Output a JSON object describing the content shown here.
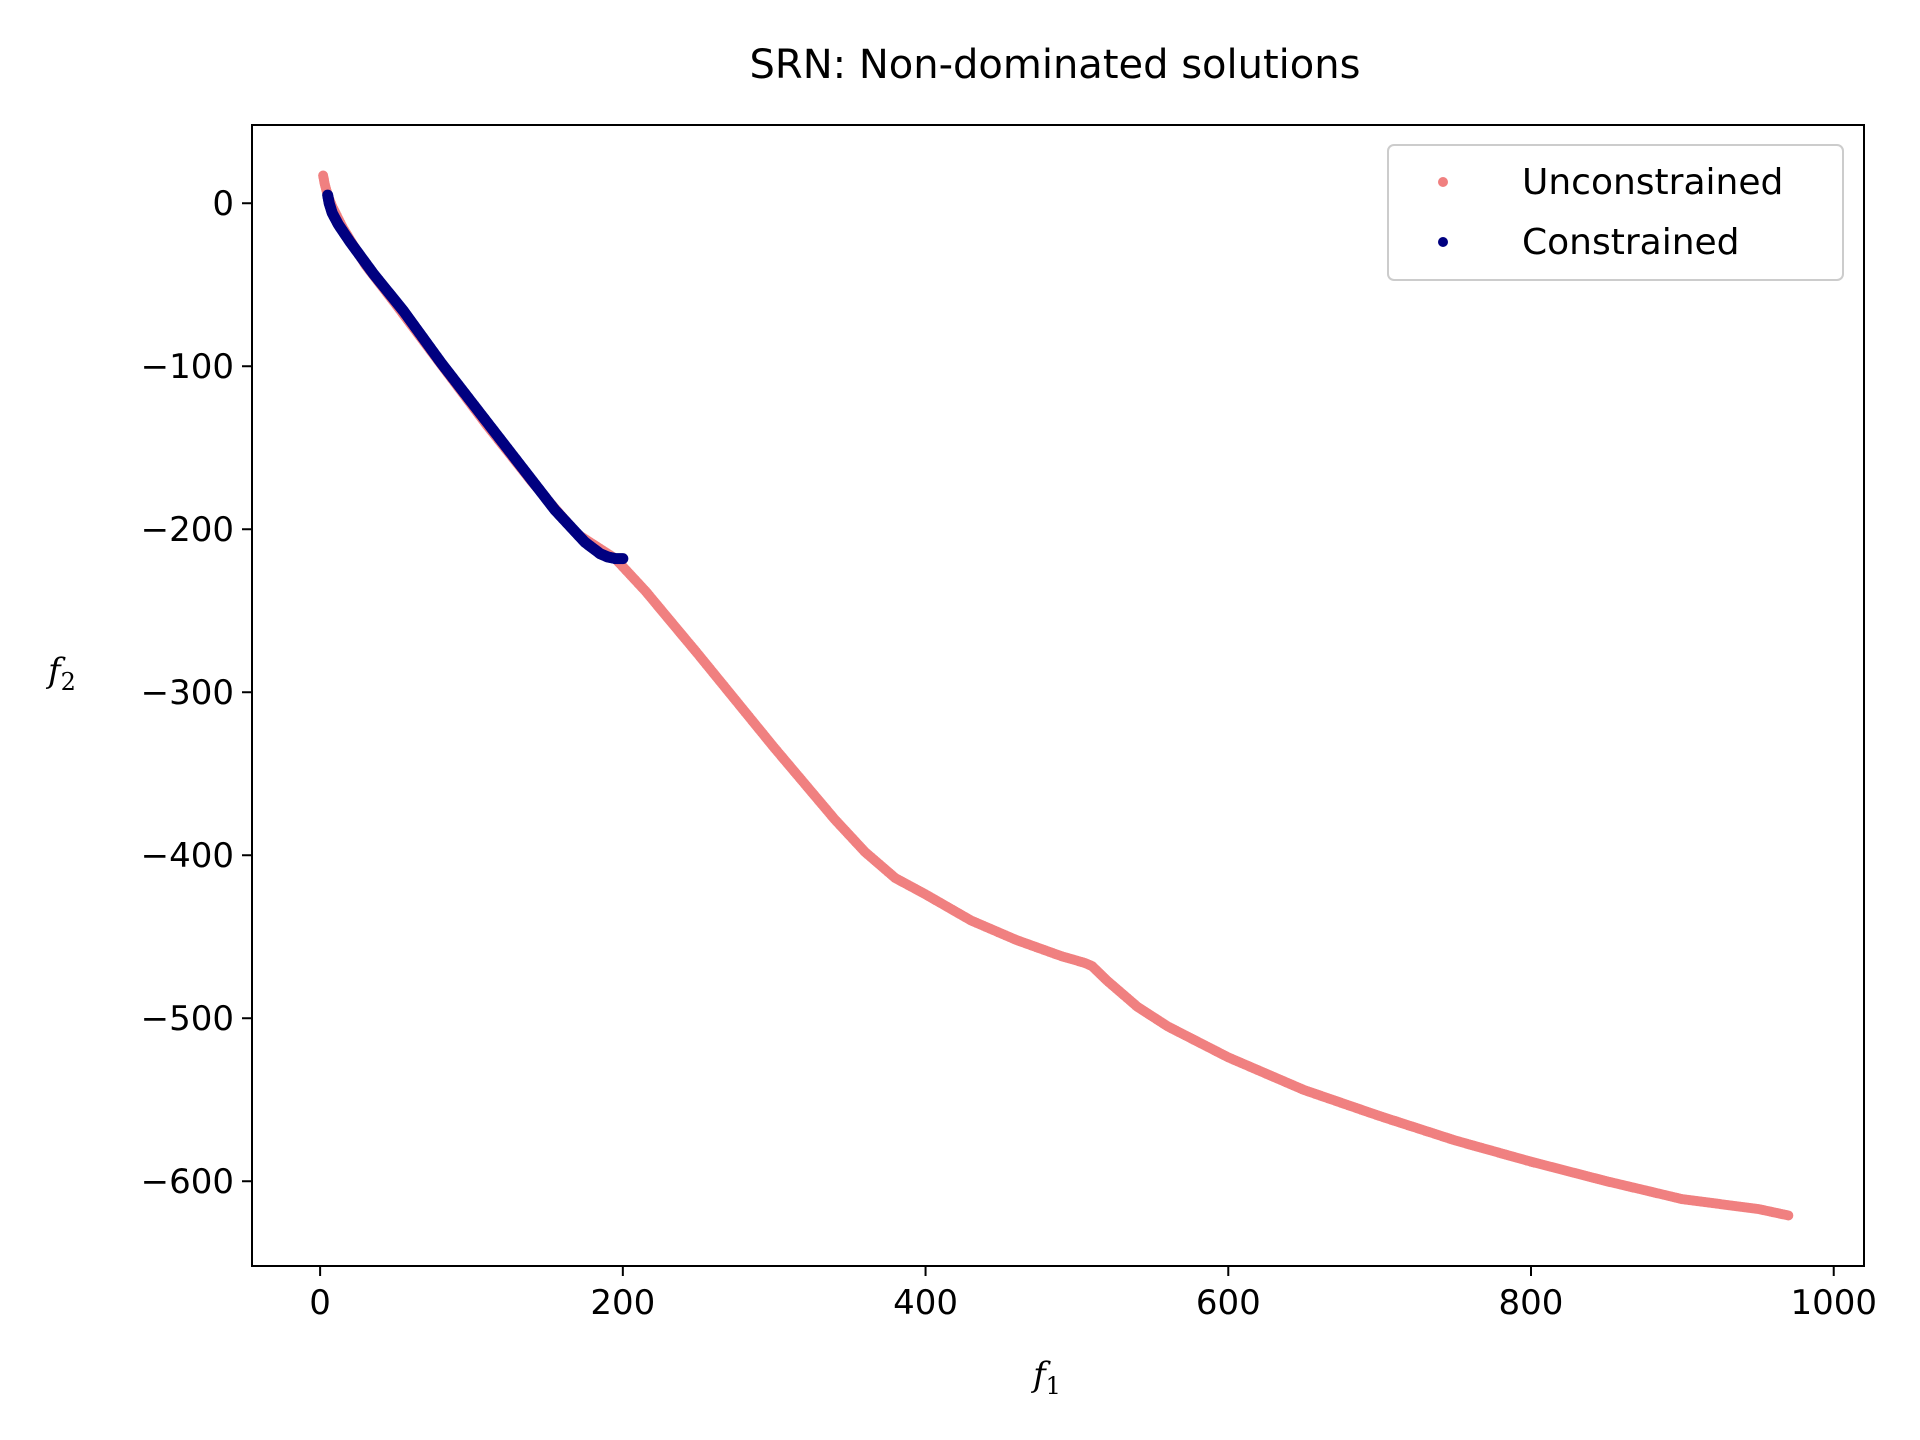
{
  "chart_data": {
    "type": "scatter",
    "title": "SRN: Non-dominated solutions",
    "xlabel": "f",
    "xlabel_sub": "1",
    "ylabel": "f",
    "ylabel_sub": "2",
    "xlim": [
      -45,
      1020
    ],
    "ylim": [
      -652,
      48
    ],
    "xticks": [
      {
        "value": 0,
        "label": "0"
      },
      {
        "value": 200,
        "label": "200"
      },
      {
        "value": 400,
        "label": "400"
      },
      {
        "value": 600,
        "label": "600"
      },
      {
        "value": 800,
        "label": "800"
      },
      {
        "value": 1000,
        "label": "1000"
      }
    ],
    "yticks": [
      {
        "value": 0,
        "label": "0"
      },
      {
        "value": -100,
        "label": "−100"
      },
      {
        "value": -200,
        "label": "−200"
      },
      {
        "value": -300,
        "label": "−300"
      },
      {
        "value": -400,
        "label": "−400"
      },
      {
        "value": -500,
        "label": "−500"
      },
      {
        "value": -600,
        "label": "−600"
      }
    ],
    "grid": false,
    "legend_position": "top-right",
    "series": [
      {
        "name": "Unconstrained",
        "color": "#f08080",
        "x": [
          2,
          3,
          5,
          8,
          15,
          30,
          50,
          80,
          110,
          140,
          170,
          195,
          215,
          250,
          300,
          340,
          360,
          380,
          400,
          430,
          460,
          490,
          505,
          510,
          520,
          540,
          560,
          600,
          650,
          700,
          750,
          800,
          850,
          900,
          950,
          970
        ],
        "y": [
          17,
          12,
          5,
          -2,
          -15,
          -38,
          -62,
          -99,
          -136,
          -171,
          -203,
          -218,
          -238,
          -277,
          -334,
          -378,
          -398,
          -414,
          -424,
          -440,
          -452,
          -462,
          -466,
          -468,
          -477,
          -493,
          -505,
          -524,
          -544,
          -560,
          -575,
          -588,
          -600,
          -611,
          -617,
          -621
        ]
      },
      {
        "name": "Constrained",
        "color": "#000080",
        "x": [
          5,
          6,
          8,
          12,
          20,
          35,
          55,
          80,
          105,
          130,
          155,
          175,
          185,
          190,
          195,
          200
        ],
        "y": [
          5,
          0,
          -6,
          -13,
          -24,
          -43,
          -66,
          -98,
          -128,
          -158,
          -188,
          -208,
          -215,
          -217,
          -218,
          -218
        ]
      }
    ]
  }
}
